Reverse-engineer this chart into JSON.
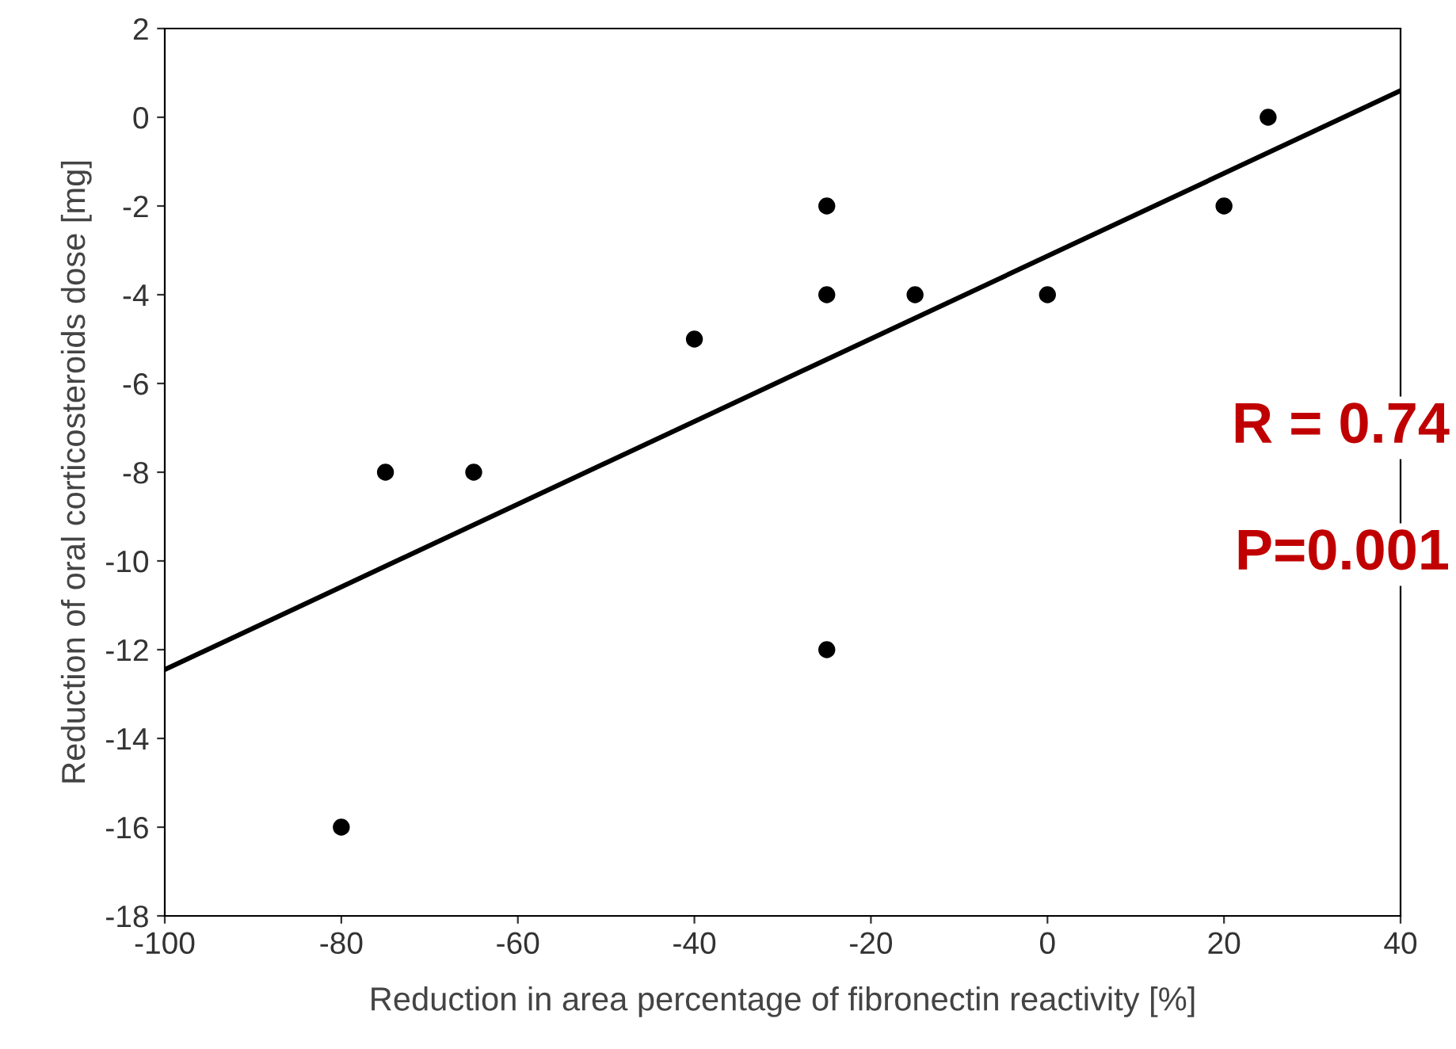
{
  "chart_data": {
    "type": "scatter",
    "xlabel": "Reduction in area percentage of fibronectin reactivity [%]",
    "ylabel": "Reduction of oral corticosteroids dose [mg]",
    "x": [
      -80,
      -75,
      -65,
      -40,
      -25,
      -25,
      -25,
      -15,
      0,
      20,
      25
    ],
    "series": [
      {
        "color": "#000000",
        "marker": "circle",
        "values": [
          -16,
          -8,
          -8,
          -5,
          -2,
          -4,
          -12,
          -4,
          -4,
          -2,
          0
        ]
      },
      {
        "type": "line",
        "color": "#000000",
        "x": [
          -100,
          40
        ],
        "values": [
          -12.45,
          0.6
        ]
      }
    ],
    "grid": false,
    "xlim": [
      -100,
      40
    ],
    "xticks": [
      -100,
      -80,
      -60,
      -40,
      -20,
      0,
      20,
      40
    ],
    "ylim": [
      -18,
      2
    ],
    "yticks": [
      -18,
      -16,
      -14,
      -12,
      -10,
      -8,
      -6,
      -4,
      -2,
      0,
      2
    ],
    "annotations": [
      "R = 0.74",
      "P=0.001"
    ]
  }
}
